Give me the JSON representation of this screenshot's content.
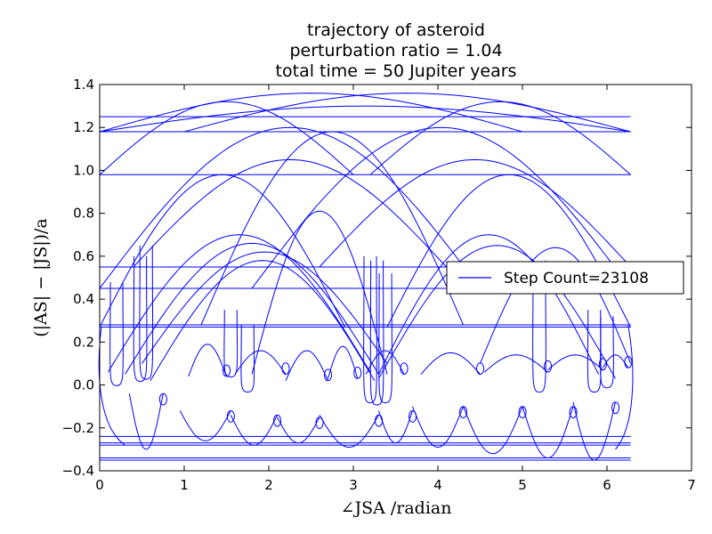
{
  "chart_data": {
    "type": "line",
    "title_lines": [
      "trajectory of asteroid",
      "perturbation ratio = 1.04",
      "total time = 50 Jupiter years"
    ],
    "xlabel": "∠JSA /radian",
    "ylabel": "(|AS| − |JS|)/a",
    "xlim": [
      0,
      7
    ],
    "ylim": [
      -0.4,
      1.4
    ],
    "x_ticks": [
      0,
      1,
      2,
      3,
      4,
      5,
      6,
      7
    ],
    "x_tick_labels": [
      "0",
      "1",
      "2",
      "3",
      "4",
      "5",
      "6",
      "7"
    ],
    "y_ticks": [
      -0.4,
      -0.2,
      0.0,
      0.2,
      0.4,
      0.6,
      0.8,
      1.0,
      1.2,
      1.4
    ],
    "y_tick_labels": [
      "−0.4",
      "−0.2",
      "0.0",
      "0.2",
      "0.4",
      "0.6",
      "0.8",
      "1.0",
      "1.2",
      "1.4"
    ],
    "grid": false,
    "legend": {
      "placement": "center-right",
      "entries": [
        "Step Count=23108"
      ]
    },
    "series_color": "#0000ff",
    "trajectory": {
      "flat_bands": [
        {
          "x": [
            0,
            6.28
          ],
          "y": 1.25
        },
        {
          "x": [
            0,
            6.28
          ],
          "y": 1.18
        },
        {
          "x": [
            0,
            6.28
          ],
          "y": 0.98
        },
        {
          "x": [
            0,
            6.28
          ],
          "y": 0.55
        },
        {
          "x": [
            0,
            6.28
          ],
          "y": 0.45
        },
        {
          "x": [
            0,
            6.28
          ],
          "y": 0.28
        },
        {
          "x": [
            0,
            6.28
          ],
          "y": 0.27
        },
        {
          "x": [
            0,
            6.28
          ],
          "y": -0.24
        },
        {
          "x": [
            0,
            6.28
          ],
          "y": -0.27
        },
        {
          "x": [
            0,
            6.28
          ],
          "y": -0.28
        },
        {
          "x": [
            0,
            6.28
          ],
          "y": -0.34
        },
        {
          "x": [
            0,
            6.28
          ],
          "y": -0.35
        }
      ],
      "arcs": [
        {
          "x0": 0.0,
          "x1": 5.0,
          "base": 1.18,
          "peak": 1.36
        },
        {
          "x0": 1.0,
          "x1": 6.28,
          "base": 1.18,
          "peak": 1.36
        },
        {
          "x0": 0.0,
          "x1": 3.0,
          "base": 0.98,
          "peak": 1.32
        },
        {
          "x0": 3.2,
          "x1": 6.28,
          "base": 0.98,
          "peak": 1.32
        },
        {
          "x0": 0.0,
          "x1": 4.5,
          "base": 0.45,
          "peak": 1.2
        },
        {
          "x0": 1.8,
          "x1": 6.28,
          "base": 0.45,
          "peak": 1.2
        },
        {
          "x0": 0.0,
          "x1": 6.28,
          "base": 1.18,
          "peak": 1.3
        },
        {
          "x0": 0.4,
          "x1": 4.1,
          "base": 0.55,
          "peak": 1.05
        },
        {
          "x0": 2.6,
          "x1": 6.28,
          "base": 0.55,
          "peak": 1.05
        },
        {
          "x0": 0.0,
          "x1": 2.9,
          "base": 0.27,
          "peak": 0.98
        },
        {
          "x0": 3.4,
          "x1": 6.28,
          "base": 0.27,
          "peak": 0.98
        },
        {
          "x0": 1.2,
          "x1": 4.3,
          "base": 0.28,
          "peak": 1.18
        },
        {
          "x0": 0.1,
          "x1": 3.2,
          "base": 0.06,
          "peak": 0.7
        },
        {
          "x0": 0.3,
          "x1": 3.3,
          "base": 0.05,
          "peak": 0.66
        },
        {
          "x0": 0.5,
          "x1": 3.4,
          "base": 0.1,
          "peak": 0.62
        },
        {
          "x0": 0.6,
          "x1": 3.25,
          "base": 0.02,
          "peak": 0.58
        },
        {
          "x0": 1.8,
          "x1": 3.4,
          "base": 0.05,
          "peak": 0.81
        },
        {
          "x0": 3.3,
          "x1": 5.9,
          "base": 0.05,
          "peak": 0.7
        },
        {
          "x0": 3.3,
          "x1": 6.1,
          "base": 0.03,
          "peak": 0.65
        },
        {
          "x0": 4.5,
          "x1": 6.28,
          "base": 0.1,
          "peak": 0.64
        }
      ],
      "upper_loops": [
        {
          "from": 1.05,
          "to": 1.5,
          "cusp": 0.04,
          "peak": 0.19
        },
        {
          "from": 1.6,
          "to": 2.2,
          "cusp": 0.05,
          "peak": 0.16
        },
        {
          "from": 2.2,
          "to": 2.7,
          "cusp": 0.02,
          "peak": 0.16
        },
        {
          "from": 2.7,
          "to": 3.05,
          "cusp": 0.03,
          "peak": 0.18
        },
        {
          "from": 3.15,
          "to": 3.6,
          "cusp": 0.05,
          "peak": 0.16
        },
        {
          "from": 3.8,
          "to": 4.5,
          "cusp": 0.05,
          "peak": 0.15
        },
        {
          "from": 4.55,
          "to": 5.3,
          "cusp": 0.06,
          "peak": 0.14
        },
        {
          "from": 5.3,
          "to": 5.95,
          "cusp": 0.07,
          "peak": 0.14
        },
        {
          "from": 5.95,
          "to": 6.25,
          "cusp": 0.08,
          "peak": 0.14
        }
      ],
      "lower_loops": [
        {
          "from": 0.35,
          "to": 0.75,
          "cusp": -0.04,
          "trough": -0.3
        },
        {
          "from": 0.95,
          "to": 1.55,
          "cusp": -0.12,
          "trough": -0.26
        },
        {
          "from": 1.55,
          "to": 2.1,
          "cusp": -0.14,
          "trough": -0.28
        },
        {
          "from": 2.1,
          "to": 2.6,
          "cusp": -0.15,
          "trough": -0.27
        },
        {
          "from": 2.6,
          "to": 3.3,
          "cusp": -0.14,
          "trough": -0.29
        },
        {
          "from": 3.3,
          "to": 3.7,
          "cusp": -0.12,
          "trough": -0.27
        },
        {
          "from": 3.7,
          "to": 4.3,
          "cusp": -0.1,
          "trough": -0.29
        },
        {
          "from": 4.3,
          "to": 5.0,
          "cusp": -0.1,
          "trough": -0.32
        },
        {
          "from": 5.0,
          "to": 5.6,
          "cusp": -0.1,
          "trough": -0.34
        },
        {
          "from": 5.6,
          "to": 6.1,
          "cusp": -0.08,
          "trough": -0.35
        }
      ],
      "tall_loops": [
        {
          "x": 0.2,
          "top": 0.48,
          "bottom": 0.03
        },
        {
          "x": 0.48,
          "top": 0.6,
          "bottom": 0.05
        },
        {
          "x": 0.55,
          "top": 0.65,
          "bottom": 0.06
        },
        {
          "x": 1.55,
          "top": 0.35,
          "bottom": 0.07
        },
        {
          "x": 1.75,
          "top": 0.28,
          "bottom": 0.0
        },
        {
          "x": 3.2,
          "top": 0.6,
          "bottom": -0.05
        },
        {
          "x": 3.28,
          "top": 0.58,
          "bottom": -0.06
        },
        {
          "x": 3.38,
          "top": 0.52,
          "bottom": -0.05
        },
        {
          "x": 5.2,
          "top": 0.58,
          "bottom": 0.0
        },
        {
          "x": 5.85,
          "top": 0.35,
          "bottom": 0.0
        },
        {
          "x": 6.0,
          "top": 0.32,
          "bottom": 0.02
        }
      ]
    }
  }
}
